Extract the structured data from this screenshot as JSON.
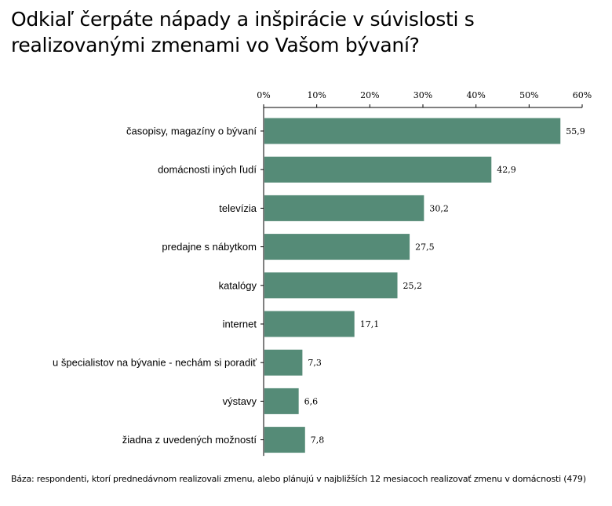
{
  "chart_data": {
    "type": "bar",
    "orientation": "horizontal",
    "title": "Odkiaľ čerpáte nápady a inšpirácie v súvislosti s realizovanými zmenami vo Vašom bývaní?",
    "categories": [
      "časopisy, magazíny o bývaní",
      "domácnosti iných ľudí",
      "televízia",
      "predajne s nábytkom",
      "katalógy",
      "internet",
      "u špecialistov na bývanie - nechám si poradiť",
      "výstavy",
      "žiadna z uvedených možností"
    ],
    "values": [
      55.9,
      42.9,
      30.2,
      27.5,
      25.2,
      17.1,
      7.3,
      6.6,
      7.8
    ],
    "value_labels": [
      "55,9",
      "42,9",
      "30,2",
      "27,5",
      "25,2",
      "17,1",
      "7,3",
      "6,6",
      "7,8"
    ],
    "xlim": [
      0,
      60
    ],
    "ticks": [
      0,
      10,
      20,
      30,
      40,
      50,
      60
    ],
    "tick_labels": [
      "0%",
      "10%",
      "20%",
      "30%",
      "40%",
      "50%",
      "60%"
    ],
    "axis_position": "top",
    "grid": false,
    "bar_color": "#558B77"
  },
  "footnote": "Báza: respondenti, ktorí prednedávnom realizovali zmenu, alebo plánujú v najbližších 12 mesiacoch realizovať zmenu v domácnosti (479)"
}
